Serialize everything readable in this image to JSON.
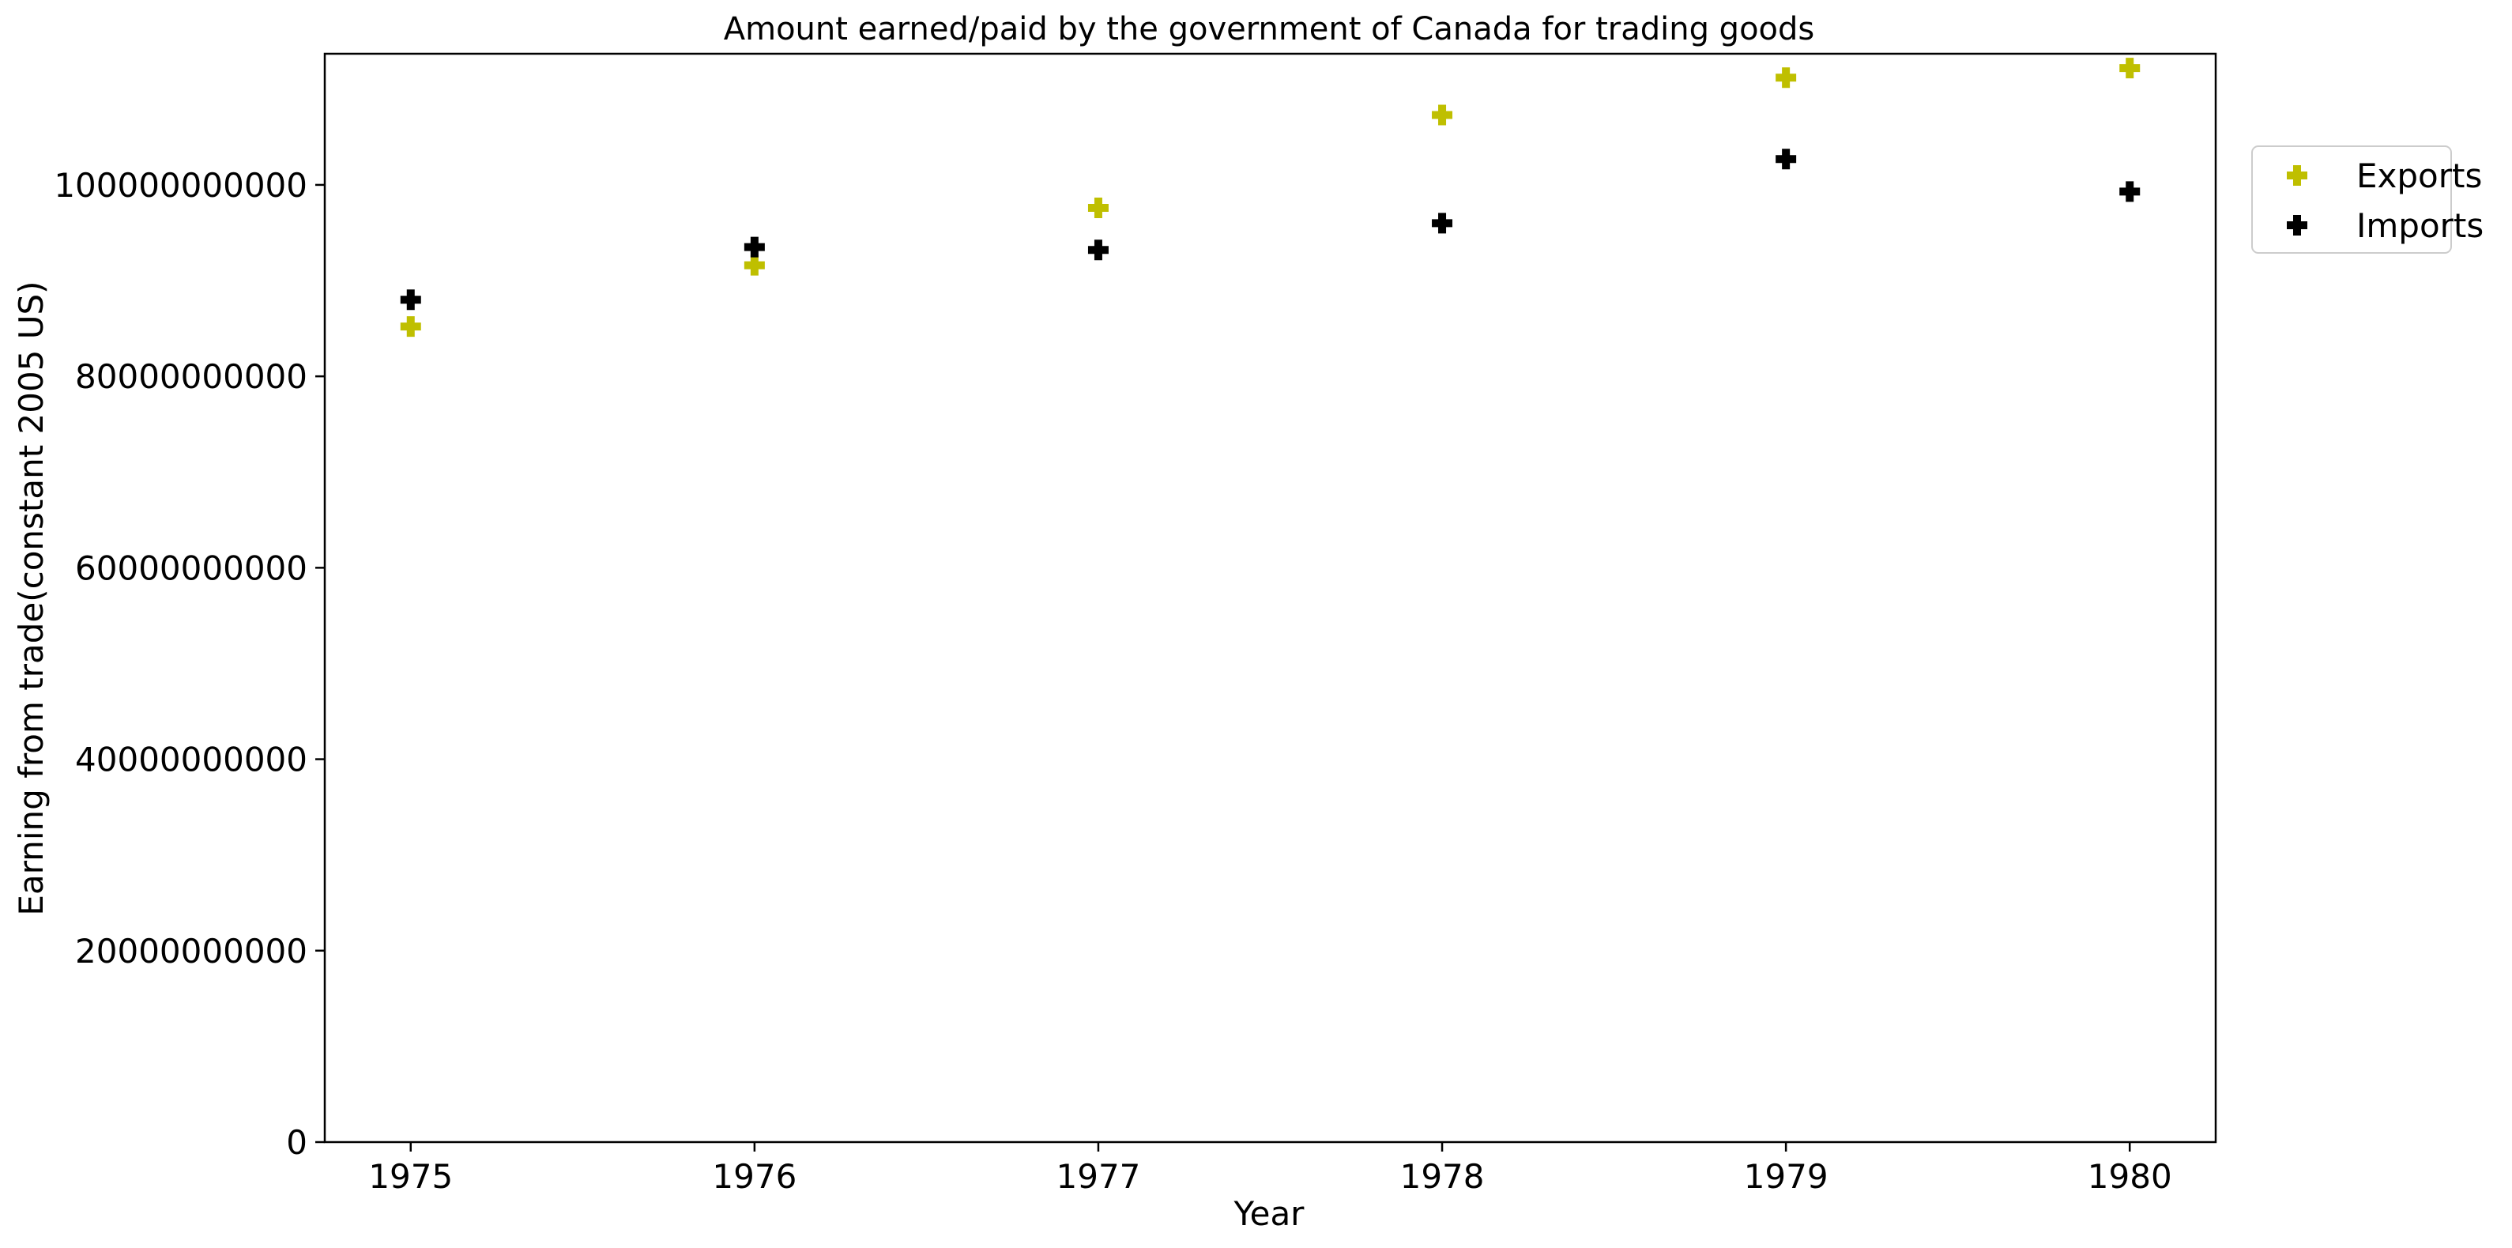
{
  "chart_data": {
    "type": "scatter",
    "title": "Amount earned/paid by the government of Canada for trading goods",
    "xlabel": "Year",
    "ylabel": "Earning from trade(constant 2005 US)",
    "x": [
      1975,
      1976,
      1977,
      1978,
      1979,
      1980
    ],
    "x_tick_labels": [
      "1975",
      "1976",
      "1977",
      "1978",
      "1979",
      "1980"
    ],
    "y_ticks": [
      0,
      20000000000,
      40000000000,
      60000000000,
      80000000000,
      100000000000
    ],
    "y_tick_labels": [
      "0",
      "20000000000",
      "40000000000",
      "60000000000",
      "80000000000",
      "100000000000"
    ],
    "xlim": [
      1974.75,
      1980.25
    ],
    "ylim": [
      0,
      113700000000
    ],
    "grid": false,
    "legend_position": "outside-right-top",
    "marker": "plus",
    "series": [
      {
        "name": "Exports",
        "color": "#bfbf00",
        "values": [
          85200000000,
          91600000000,
          97600000000,
          107300000000,
          111200000000,
          112200000000
        ]
      },
      {
        "name": "Imports",
        "color": "#000000",
        "values": [
          88000000000,
          93500000000,
          93200000000,
          96000000000,
          102700000000,
          99300000000
        ]
      }
    ]
  }
}
